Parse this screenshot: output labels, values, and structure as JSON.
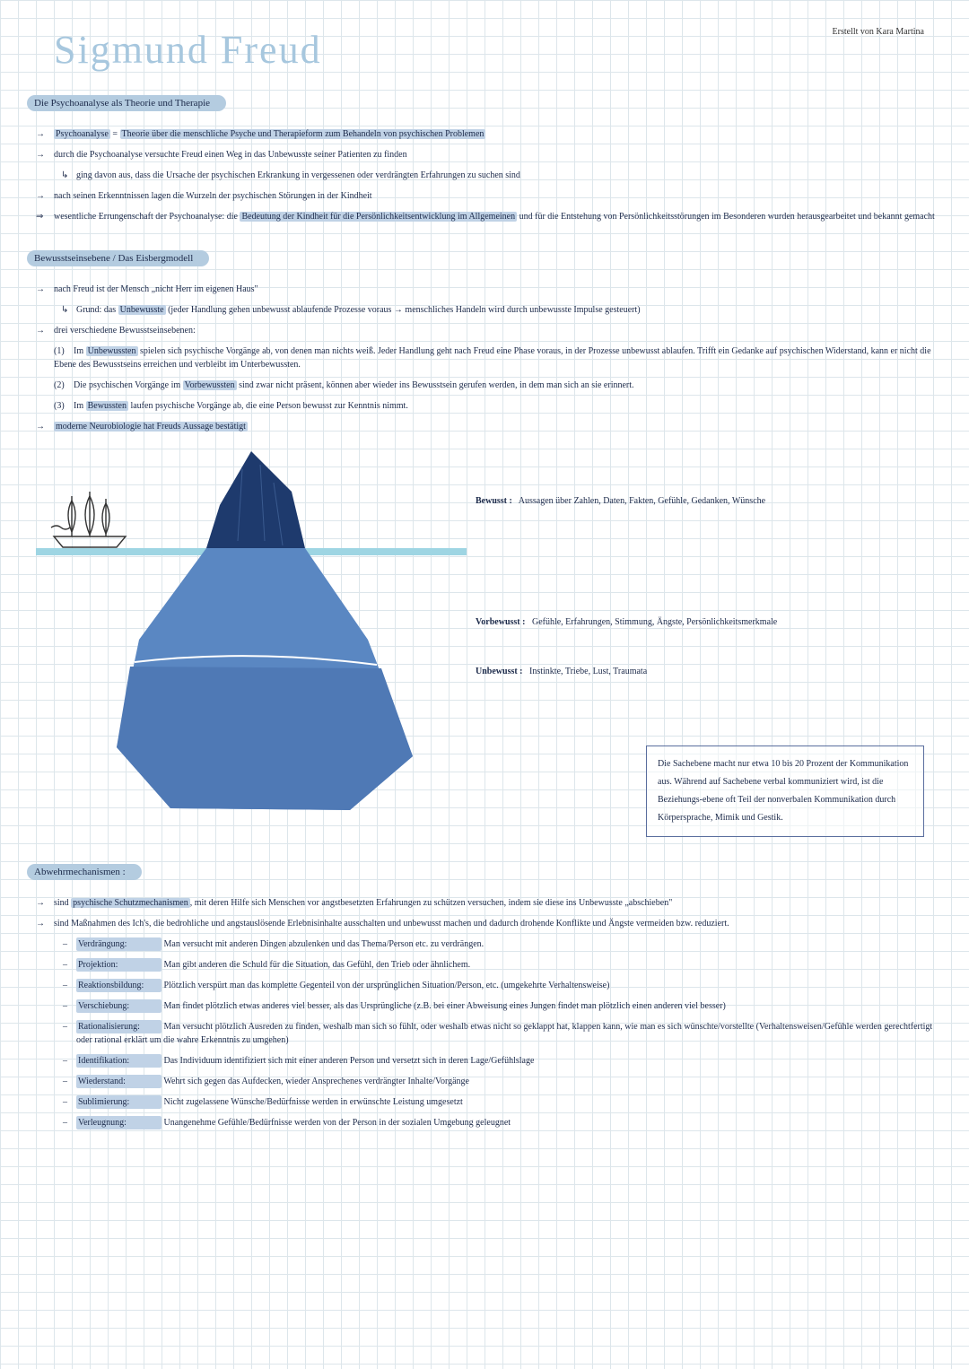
{
  "author": "Erstellt von Kara Martina",
  "title": "Sigmund Freud",
  "colors": {
    "grid": "#dde6eb",
    "title": "#a7c7de",
    "headerBg": "#b4cce0",
    "text": "#1c2a4a",
    "highlight": "#c0d2e6",
    "iceTop": "#1e3a6d",
    "iceMid": "#5a87c2",
    "iceLow": "#4f79b5",
    "water": "#9ed5e3",
    "boxBorder": "#5a6e9e"
  },
  "s1": {
    "header": "Die Psychoanalyse als Theorie und Therapie",
    "line1a": "Psychoanalyse",
    "line1b": " = ",
    "line1c": "Theorie über die menschliche Psyche und Therapieform zum Behandeln von psychischen Problemen",
    "line2": "durch die Psychoanalyse versuchte Freud einen Weg in das Unbewusste seiner Patienten zu finden",
    "line3": "ging davon aus, dass die Ursache der psychischen Erkrankung in vergessenen oder verdrängten Erfahrungen zu suchen sind",
    "line4": "nach seinen Erkenntnissen lagen die Wurzeln der psychischen Störungen in der Kindheit",
    "line5a": "wesentliche Errungenschaft der Psychoanalyse: die ",
    "line5b": "Bedeutung der Kindheit für die Persönlichkeitsentwicklung im Allgemeinen",
    "line5c": " und für die Entstehung von Persönlichkeitsstörungen im Besonderen wurden herausgearbeitet und bekannt gemacht"
  },
  "s2": {
    "header": "Bewusstseinsebene / Das Eisbergmodell",
    "line1": "nach Freud ist der Mensch „nicht Herr im eigenen Haus\"",
    "line2a": "Grund: das ",
    "line2b": "Unbewusste",
    "line2c": " (jeder Handlung gehen unbewusst ablaufende Prozesse voraus → menschliches Handeln wird durch unbewusste Impulse gesteuert)",
    "line3": "drei verschiedene Bewusstseinsebenen:",
    "item1n": "(1)",
    "item1a": "Im ",
    "item1b": "Unbewussten",
    "item1c": " spielen sich psychische Vorgänge ab, von denen man nichts weiß. Jeder Handlung geht nach Freud eine Phase voraus, in der Prozesse unbewusst ablaufen. Trifft ein Gedanke auf psychischen Widerstand, kann er nicht die Ebene des Bewusstseins erreichen und verbleibt im Unterbewussten.",
    "item2n": "(2)",
    "item2a": "Die psychischen Vorgänge im ",
    "item2b": "Vorbewussten",
    "item2c": " sind zwar nicht präsent, können aber wieder ins Bewusstsein gerufen werden, in dem man sich an sie erinnert.",
    "item3n": "(3)",
    "item3a": "Im ",
    "item3b": "Bewussten",
    "item3c": " laufen psychische Vorgänge ab, die eine Person bewusst zur Kenntnis nimmt.",
    "line4": "moderne Neurobiologie hat Freuds Aussage bestätigt"
  },
  "iceberg": {
    "label1": {
      "title": "Bewusst :",
      "text": "Aussagen über Zahlen, Daten, Fakten, Gefühle, Gedanken, Wünsche"
    },
    "label2": {
      "title": "Vorbewusst :",
      "text": "Gefühle, Erfahrungen, Stimmung, Ängste, Persönlichkeitsmerkmale"
    },
    "label3": {
      "title": "Unbewusst :",
      "text": "Instinkte, Triebe, Lust, Traumata"
    },
    "note": "Die Sachebene macht nur etwa 10 bis 20 Prozent der Kommunikation aus. Während auf Sachebene verbal kommuniziert wird, ist die Beziehungs-ebene oft Teil der nonverbalen Kommunikation durch Körpersprache, Mimik und Gestik."
  },
  "s3": {
    "header": "Abwehrmechanismen :",
    "line1a": "sind ",
    "line1b": "psychische Schutzmechanismen",
    "line1c": ", mit deren Hilfe sich Menschen vor angstbesetzten Erfahrungen zu schützen versuchen, indem sie diese ins Unbewusste „abschieben\"",
    "line2": "sind Maßnahmen des Ich's, die bedrohliche und angstauslösende Erlebnisinhalte ausschalten und unbewusst machen und dadurch drohende Konflikte und Ängste vermeiden bzw. reduziert.",
    "mech": [
      {
        "name": "Verdrängung:",
        "desc": "Man versucht mit anderen Dingen abzulenken und das Thema/Person etc. zu verdrängen."
      },
      {
        "name": "Projektion:",
        "desc": "Man gibt anderen die Schuld für die Situation, das Gefühl, den Trieb oder ähnlichem."
      },
      {
        "name": "Reaktionsbildung:",
        "desc": "Plötzlich verspürt man das komplette Gegenteil von der ursprünglichen Situation/Person, etc. (umgekehrte Verhaltensweise)"
      },
      {
        "name": "Verschiebung:",
        "desc": "Man findet plötzlich etwas anderes viel besser, als das Ursprüngliche (z.B. bei einer Abweisung eines Jungen findet man plötzlich einen anderen viel besser)"
      },
      {
        "name": "Rationalisierung:",
        "desc": "Man versucht plötzlich Ausreden zu finden, weshalb man sich so fühlt, oder weshalb etwas nicht so geklappt hat, klappen kann, wie man es sich wünschte/vorstellte (Verhaltensweisen/Gefühle werden gerechtfertigt oder rational erklärt um die wahre Erkenntnis zu umgehen)"
      },
      {
        "name": "Identifikation:",
        "desc": "Das Individuum identifiziert sich mit einer anderen Person und versetzt sich in deren Lage/Gefühlslage"
      },
      {
        "name": "Wiederstand:",
        "desc": "Wehrt sich gegen das Aufdecken, wieder Ansprechenes verdrängter Inhalte/Vorgänge"
      },
      {
        "name": "Sublimierung:",
        "desc": "Nicht zugelassene Wünsche/Bedürfnisse werden in erwünschte Leistung umgesetzt"
      },
      {
        "name": "Verleugnung:",
        "desc": "Unangenehme Gefühle/Bedürfnisse werden von der Person in der sozialen Umgebung geleugnet"
      }
    ]
  }
}
